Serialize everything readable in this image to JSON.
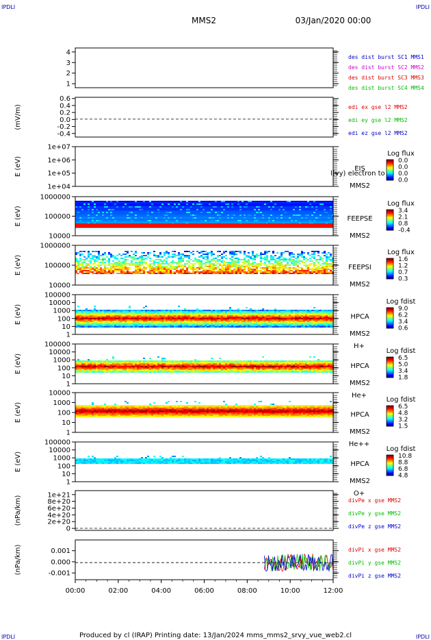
{
  "page": {
    "corner_label": "IPDLI",
    "title": "MMS2",
    "date": "03/Jan/2020 00:00",
    "footer": "Produced by cl (IRAP)   Printing date: 13/Jan/2024   mms_mms2_srvy_vue_web2.cl"
  },
  "colors": {
    "blue": "#0000cc",
    "magenta": "#cc00cc",
    "red": "#dd0000",
    "green": "#00bb00"
  },
  "chart_data": {
    "type": "heatmap",
    "x_axis": {
      "tick_labels": [
        "00:00",
        "02:00",
        "04:00",
        "06:00",
        "08:00",
        "10:00",
        "12:00"
      ]
    },
    "panels": [
      {
        "kind": "line",
        "ylabel": "",
        "tick_labels": [
          "4",
          "3",
          "2",
          "1"
        ],
        "legend": [
          {
            "label": "des dist burst SC1 MMS1",
            "color": "blue"
          },
          {
            "label": "des dist burst SC2 MMS2",
            "color": "magenta"
          },
          {
            "label": "des dist burst SC3 MMS3",
            "color": "red"
          },
          {
            "label": "des dist burst SC4 MMS4",
            "color": "green"
          }
        ]
      },
      {
        "kind": "line",
        "ylabel": "(mV/m)",
        "tick_labels": [
          "0.6",
          "0.4",
          "0.2",
          "0.0",
          "-0.2",
          "-0.4"
        ],
        "zero_line": true,
        "legend": [
          {
            "label": "edi ex gse l2 MMS2",
            "color": "red"
          },
          {
            "label": "edi ey gse l2 MMS2",
            "color": "green"
          },
          {
            "label": "edi ez gse l2 MMS2",
            "color": "blue"
          }
        ]
      },
      {
        "kind": "spectrogram",
        "ylabel": "E (eV)",
        "tick_labels": [
          "1e+07",
          "1e+06",
          "1e+05",
          "1e+04"
        ],
        "instrument": "EIS",
        "overlay_label": "l(vy) electron to",
        "spacecraft": "MMS2",
        "species": "",
        "colorbar_title": "Log flux",
        "colorbar_values": [
          "0.0",
          "0.0",
          "0.0",
          "0.0"
        ],
        "fill": "none"
      },
      {
        "kind": "spectrogram",
        "ylabel": "E (eV)",
        "tick_labels": [
          "1000000",
          "100000",
          "10000"
        ],
        "instrument": "FEEPSE",
        "overlay_label": "",
        "spacecraft": "MMS2",
        "species": "",
        "colorbar_title": "Log flux",
        "colorbar_values": [
          "3.4",
          "2.1",
          "0.8",
          "-0.4"
        ],
        "fill": "feepse"
      },
      {
        "kind": "spectrogram",
        "ylabel": "E (eV)",
        "tick_labels": [
          "1000000",
          "100000",
          "10000"
        ],
        "instrument": "FEEPSI",
        "overlay_label": "",
        "spacecraft": "MMS2",
        "species": "",
        "colorbar_title": "Log flux",
        "colorbar_values": [
          "1.6",
          "1.2",
          "0.7",
          "0.3"
        ],
        "fill": "feepsi"
      },
      {
        "kind": "spectrogram",
        "ylabel": "E (eV)",
        "tick_labels": [
          "100000",
          "10000",
          "1000",
          "100",
          "10",
          "1"
        ],
        "instrument": "HPCA",
        "overlay_label": "",
        "spacecraft": "MMS2",
        "species": "H+",
        "colorbar_title": "Log fdist",
        "colorbar_values": [
          "9.0",
          "6.2",
          "3.4",
          "0.6"
        ],
        "fill": "hplus"
      },
      {
        "kind": "spectrogram",
        "ylabel": "E (eV)",
        "tick_labels": [
          "100000",
          "10000",
          "1000",
          "100",
          "10",
          "1"
        ],
        "instrument": "HPCA",
        "overlay_label": "",
        "spacecraft": "MMS2",
        "species": "He+",
        "colorbar_title": "Log fdist",
        "colorbar_values": [
          "6.5",
          "5.0",
          "3.4",
          "1.8"
        ],
        "fill": "heplus"
      },
      {
        "kind": "spectrogram",
        "ylabel": "E (eV)",
        "tick_labels": [
          "10000",
          "1000",
          "100",
          "10",
          "1"
        ],
        "instrument": "HPCA",
        "overlay_label": "",
        "spacecraft": "MMS2",
        "species": "He++",
        "colorbar_title": "Log fdist",
        "colorbar_values": [
          "6.5",
          "4.8",
          "3.2",
          "1.5"
        ],
        "fill": "heplusplus"
      },
      {
        "kind": "spectrogram",
        "ylabel": "E (eV)",
        "tick_labels": [
          "100000",
          "10000",
          "1000",
          "100",
          "10",
          "1"
        ],
        "instrument": "HPCA",
        "overlay_label": "",
        "spacecraft": "MMS2",
        "species": "O+",
        "colorbar_title": "Log fdist",
        "colorbar_values": [
          "10.8",
          "8.8",
          "6.8",
          "4.8"
        ],
        "fill": "oplus"
      },
      {
        "kind": "line",
        "ylabel": "(nPa/km)",
        "tick_labels": [
          "1e+21",
          "8e+20",
          "6e+20",
          "4e+20",
          "2e+20",
          "0"
        ],
        "zero_line": true,
        "legend": [
          {
            "label": "divPe x gse MMS2",
            "color": "red"
          },
          {
            "label": "divPe y gse MMS2",
            "color": "green"
          },
          {
            "label": "divPe z gse MMS2",
            "color": "blue"
          }
        ]
      },
      {
        "kind": "line",
        "ylabel": "(nPa/km)",
        "tick_labels": [
          "0.001",
          "0.000",
          "-0.001"
        ],
        "zero_line": true,
        "data_start_hour": 8.8,
        "legend": [
          {
            "label": "divPi x gse MMS2",
            "color": "red"
          },
          {
            "label": "divPi y gse MMS2",
            "color": "green"
          },
          {
            "label": "divPi z gse MMS2",
            "color": "blue"
          }
        ]
      }
    ]
  }
}
